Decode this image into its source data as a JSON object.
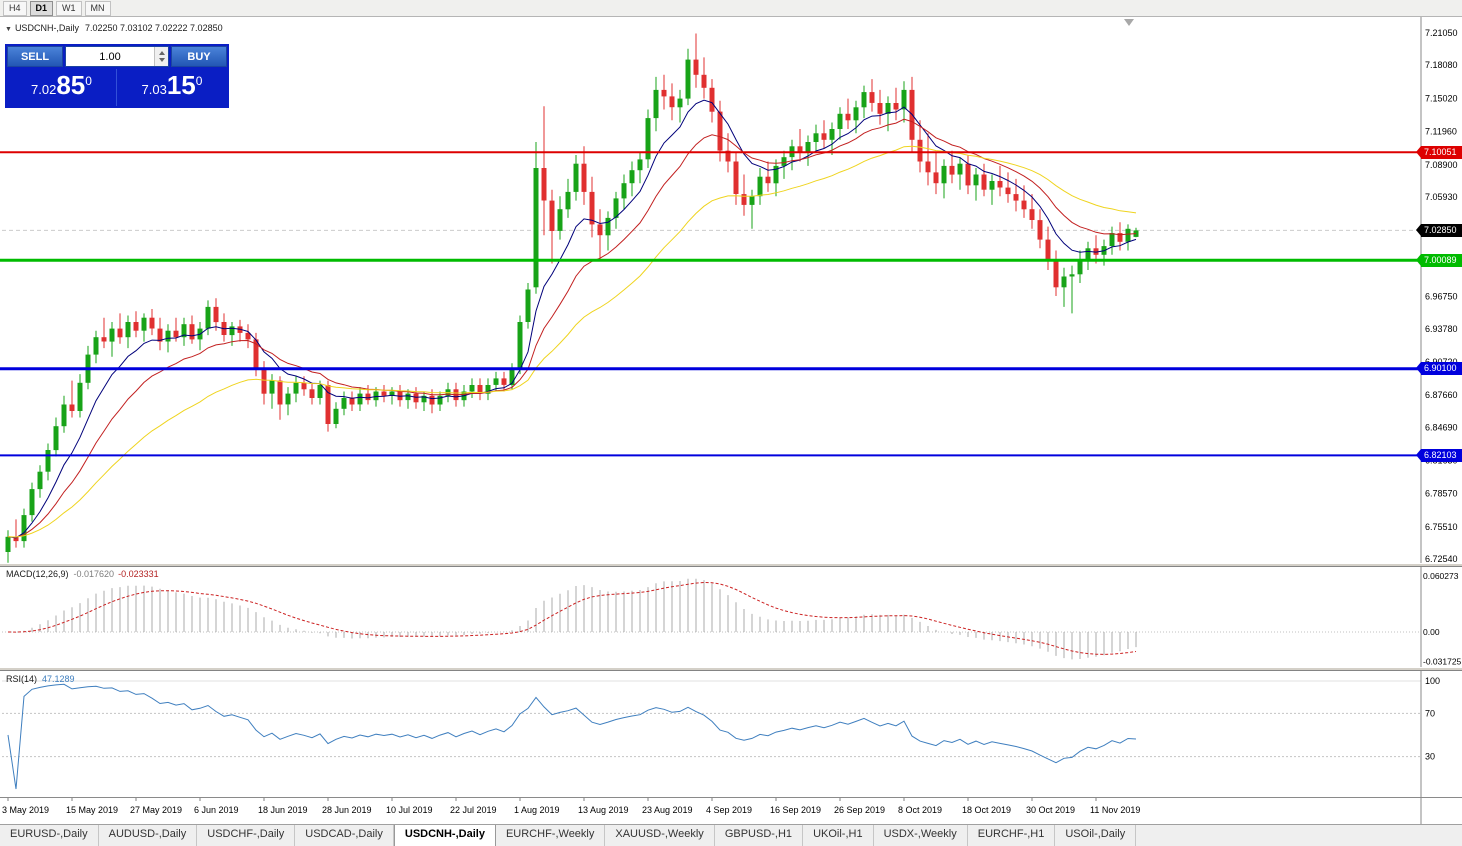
{
  "toolbar": {
    "timeframes": [
      {
        "label": "H4",
        "active": false
      },
      {
        "label": "D1",
        "active": true
      },
      {
        "label": "W1",
        "active": false
      },
      {
        "label": "MN",
        "active": false
      }
    ]
  },
  "chart": {
    "title_symbol": "USDCNH-,Daily",
    "title_ohlc": "7.02250 7.03102 7.02222 7.02850",
    "one_click": {
      "sell_label": "SELL",
      "buy_label": "BUY",
      "volume": "1.00",
      "sell_price_small": "7.02",
      "sell_price_big": "85",
      "sell_price_sup": "0",
      "buy_price_small": "7.03",
      "buy_price_big": "15",
      "buy_price_sup": "0"
    }
  },
  "chart_data": {
    "type": "candlestick",
    "symbol": "USDCNH",
    "timeframe": "Daily",
    "colors": {
      "up": "#18a318",
      "down": "#e03030",
      "bg": "#ffffff"
    },
    "price_axis": {
      "min": 6.7254,
      "max": 7.2105,
      "ticks": [
        {
          "v": 7.2105,
          "label": "7.21050"
        },
        {
          "v": 7.1808,
          "label": "7.18080"
        },
        {
          "v": 7.1502,
          "label": "7.15020"
        },
        {
          "v": 7.1196,
          "label": "7.11960"
        },
        {
          "v": 7.089,
          "label": "7.08900"
        },
        {
          "v": 7.0593,
          "label": "7.05930"
        },
        {
          "v": 7.0287,
          "label": "7.02870"
        },
        {
          "v": 6.9981,
          "label": "6.99810"
        },
        {
          "v": 6.9675,
          "label": "6.96750"
        },
        {
          "v": 6.9378,
          "label": "6.93780"
        },
        {
          "v": 6.9072,
          "label": "6.90720"
        },
        {
          "v": 6.8766,
          "label": "6.87660"
        },
        {
          "v": 6.8469,
          "label": "6.84690"
        },
        {
          "v": 6.8163,
          "label": "6.81630"
        },
        {
          "v": 6.7857,
          "label": "6.78570"
        },
        {
          "v": 6.7551,
          "label": "6.75510"
        },
        {
          "v": 6.7254,
          "label": "6.72540"
        }
      ]
    },
    "hlines": [
      {
        "value": 7.10051,
        "label": "7.10051",
        "color": "#dd0000",
        "width": 2
      },
      {
        "value": 7.00089,
        "label": "7.00089",
        "color": "#00bb00",
        "width": 3
      },
      {
        "value": 6.901,
        "label": "6.90100",
        "color": "#0000dd",
        "width": 3
      },
      {
        "value": 6.82103,
        "label": "6.82103",
        "color": "#0000dd",
        "width": 2
      }
    ],
    "current_price": {
      "value": 7.0285,
      "label": "7.02850",
      "color": "#000000"
    },
    "ma": [
      {
        "name": "ma-fast",
        "period": 8,
        "color": "#00007a"
      },
      {
        "name": "ma-mid",
        "period": 16,
        "color": "#c22020"
      },
      {
        "name": "ma-slow",
        "period": 34,
        "color": "#efd41f"
      }
    ],
    "macd": {
      "label": "MACD(12,26,9)",
      "value_main": "-0.017620",
      "value_signal": "-0.023331",
      "params": [
        12,
        26,
        9
      ],
      "hist_color": "#ababab",
      "signal_color": "#cc2222",
      "axis": [
        {
          "v": 0.060273,
          "label": "0.060273"
        },
        {
          "v": 0,
          "label": "0.00"
        },
        {
          "v": -0.031725,
          "label": "-0.031725"
        }
      ]
    },
    "rsi": {
      "label": "RSI(14)",
      "value_text": "47.1289",
      "period": 14,
      "color": "#3f7fbf",
      "levels": [
        {
          "v": 100,
          "label": "100"
        },
        {
          "v": 70,
          "label": "70"
        },
        {
          "v": 30,
          "label": "30"
        }
      ]
    },
    "date_ticks": [
      {
        "index": 0,
        "label": "3 May 2019"
      },
      {
        "index": 8,
        "label": "15 May 2019"
      },
      {
        "index": 16,
        "label": "27 May 2019"
      },
      {
        "index": 24,
        "label": "6 Jun 2019"
      },
      {
        "index": 32,
        "label": "18 Jun 2019"
      },
      {
        "index": 40,
        "label": "28 Jun 2019"
      },
      {
        "index": 48,
        "label": "10 Jul 2019"
      },
      {
        "index": 56,
        "label": "22 Jul 2019"
      },
      {
        "index": 64,
        "label": "1 Aug 2019"
      },
      {
        "index": 72,
        "label": "13 Aug 2019"
      },
      {
        "index": 80,
        "label": "23 Aug 2019"
      },
      {
        "index": 88,
        "label": "4 Sep 2019"
      },
      {
        "index": 96,
        "label": "16 Sep 2019"
      },
      {
        "index": 104,
        "label": "26 Sep 2019"
      },
      {
        "index": 112,
        "label": "8 Oct 2019"
      },
      {
        "index": 120,
        "label": "18 Oct 2019"
      },
      {
        "index": 128,
        "label": "30 Oct 2019"
      },
      {
        "index": 136,
        "label": "11 Nov 2019"
      }
    ],
    "candles": [
      [
        6.732,
        6.752,
        6.722,
        6.746
      ],
      [
        6.746,
        6.762,
        6.736,
        6.742
      ],
      [
        6.742,
        6.772,
        6.736,
        6.766
      ],
      [
        6.766,
        6.796,
        6.76,
        6.79
      ],
      [
        6.79,
        6.812,
        6.782,
        6.806
      ],
      [
        6.806,
        6.832,
        6.798,
        6.826
      ],
      [
        6.826,
        6.856,
        6.82,
        6.848
      ],
      [
        6.848,
        6.876,
        6.842,
        6.868
      ],
      [
        6.868,
        6.89,
        6.856,
        6.862
      ],
      [
        6.862,
        6.896,
        6.856,
        6.888
      ],
      [
        6.888,
        6.922,
        6.882,
        6.914
      ],
      [
        6.914,
        6.936,
        6.906,
        6.93
      ],
      [
        6.93,
        6.948,
        6.92,
        6.926
      ],
      [
        6.926,
        6.944,
        6.912,
        6.938
      ],
      [
        6.938,
        6.952,
        6.924,
        6.93
      ],
      [
        6.93,
        6.95,
        6.92,
        6.944
      ],
      [
        6.944,
        6.954,
        6.93,
        6.936
      ],
      [
        6.936,
        6.952,
        6.926,
        6.948
      ],
      [
        6.948,
        6.956,
        6.932,
        6.938
      ],
      [
        6.938,
        6.948,
        6.918,
        6.926
      ],
      [
        6.926,
        6.942,
        6.916,
        6.936
      ],
      [
        6.936,
        6.948,
        6.926,
        6.93
      ],
      [
        6.93,
        6.948,
        6.922,
        6.942
      ],
      [
        6.942,
        6.95,
        6.924,
        6.928
      ],
      [
        6.928,
        6.944,
        6.918,
        6.938
      ],
      [
        6.938,
        6.964,
        6.932,
        6.958
      ],
      [
        6.958,
        6.966,
        6.936,
        6.944
      ],
      [
        6.944,
        6.952,
        6.926,
        6.932
      ],
      [
        6.932,
        6.944,
        6.922,
        6.94
      ],
      [
        6.94,
        6.946,
        6.926,
        6.934
      ],
      [
        6.934,
        6.942,
        6.92,
        6.928
      ],
      [
        6.928,
        6.934,
        6.894,
        6.9
      ],
      [
        6.9,
        6.908,
        6.868,
        6.878
      ],
      [
        6.878,
        6.896,
        6.864,
        6.89
      ],
      [
        6.89,
        6.894,
        6.854,
        6.868
      ],
      [
        6.868,
        6.884,
        6.858,
        6.878
      ],
      [
        6.878,
        6.894,
        6.87,
        6.888
      ],
      [
        6.888,
        6.894,
        6.876,
        6.882
      ],
      [
        6.882,
        6.888,
        6.868,
        6.874
      ],
      [
        6.874,
        6.89,
        6.868,
        6.886
      ],
      [
        6.886,
        6.89,
        6.843,
        6.85
      ],
      [
        6.85,
        6.87,
        6.846,
        6.864
      ],
      [
        6.864,
        6.88,
        6.858,
        6.874
      ],
      [
        6.874,
        6.88,
        6.862,
        6.868
      ],
      [
        6.868,
        6.884,
        6.862,
        6.878
      ],
      [
        6.878,
        6.886,
        6.868,
        6.872
      ],
      [
        6.872,
        6.884,
        6.866,
        6.88
      ],
      [
        6.88,
        6.886,
        6.87,
        6.876
      ],
      [
        6.876,
        6.884,
        6.868,
        6.88
      ],
      [
        6.88,
        6.886,
        6.866,
        6.872
      ],
      [
        6.872,
        6.882,
        6.864,
        6.878
      ],
      [
        6.878,
        6.884,
        6.864,
        6.87
      ],
      [
        6.87,
        6.88,
        6.862,
        6.876
      ],
      [
        6.876,
        6.882,
        6.86,
        6.868
      ],
      [
        6.868,
        6.88,
        6.862,
        6.876
      ],
      [
        6.876,
        6.888,
        6.87,
        6.882
      ],
      [
        6.882,
        6.888,
        6.866,
        6.872
      ],
      [
        6.872,
        6.886,
        6.866,
        6.88
      ],
      [
        6.88,
        6.892,
        6.874,
        6.886
      ],
      [
        6.886,
        6.892,
        6.872,
        6.878
      ],
      [
        6.878,
        6.892,
        6.872,
        6.886
      ],
      [
        6.886,
        6.898,
        6.88,
        6.892
      ],
      [
        6.892,
        6.898,
        6.88,
        6.886
      ],
      [
        6.886,
        6.906,
        6.882,
        6.902
      ],
      [
        6.902,
        6.95,
        6.896,
        6.944
      ],
      [
        6.944,
        6.98,
        6.938,
        6.974
      ],
      [
        6.976,
        7.11,
        6.97,
        7.086
      ],
      [
        7.086,
        7.143,
        7.024,
        7.056
      ],
      [
        7.056,
        7.066,
        6.998,
        7.028
      ],
      [
        7.028,
        7.06,
        7.02,
        7.048
      ],
      [
        7.048,
        7.076,
        7.04,
        7.064
      ],
      [
        7.064,
        7.098,
        7.056,
        7.09
      ],
      [
        7.09,
        7.106,
        7.052,
        7.064
      ],
      [
        7.064,
        7.078,
        7.022,
        7.034
      ],
      [
        7.034,
        7.048,
        7.002,
        7.024
      ],
      [
        7.024,
        7.046,
        7.01,
        7.04
      ],
      [
        7.04,
        7.064,
        7.03,
        7.058
      ],
      [
        7.058,
        7.08,
        7.048,
        7.072
      ],
      [
        7.072,
        7.092,
        7.06,
        7.084
      ],
      [
        7.084,
        7.1,
        7.072,
        7.094
      ],
      [
        7.094,
        7.14,
        7.086,
        7.132
      ],
      [
        7.132,
        7.17,
        7.12,
        7.158
      ],
      [
        7.158,
        7.172,
        7.14,
        7.152
      ],
      [
        7.152,
        7.164,
        7.13,
        7.142
      ],
      [
        7.142,
        7.158,
        7.128,
        7.15
      ],
      [
        7.15,
        7.196,
        7.144,
        7.186
      ],
      [
        7.186,
        7.21,
        7.16,
        7.172
      ],
      [
        7.172,
        7.188,
        7.15,
        7.16
      ],
      [
        7.16,
        7.168,
        7.128,
        7.138
      ],
      [
        7.138,
        7.148,
        7.092,
        7.102
      ],
      [
        7.102,
        7.118,
        7.082,
        7.092
      ],
      [
        7.092,
        7.1,
        7.052,
        7.062
      ],
      [
        7.062,
        7.08,
        7.042,
        7.052
      ],
      [
        7.052,
        7.066,
        7.03,
        7.06
      ],
      [
        7.06,
        7.086,
        7.052,
        7.078
      ],
      [
        7.078,
        7.092,
        7.064,
        7.072
      ],
      [
        7.072,
        7.094,
        7.06,
        7.088
      ],
      [
        7.088,
        7.102,
        7.076,
        7.096
      ],
      [
        7.096,
        7.112,
        7.084,
        7.106
      ],
      [
        7.106,
        7.122,
        7.092,
        7.1
      ],
      [
        7.1,
        7.116,
        7.088,
        7.11
      ],
      [
        7.11,
        7.126,
        7.1,
        7.118
      ],
      [
        7.118,
        7.13,
        7.104,
        7.112
      ],
      [
        7.112,
        7.128,
        7.098,
        7.122
      ],
      [
        7.122,
        7.142,
        7.112,
        7.136
      ],
      [
        7.136,
        7.15,
        7.122,
        7.13
      ],
      [
        7.13,
        7.148,
        7.118,
        7.142
      ],
      [
        7.142,
        7.162,
        7.132,
        7.156
      ],
      [
        7.156,
        7.168,
        7.138,
        7.146
      ],
      [
        7.146,
        7.158,
        7.126,
        7.136
      ],
      [
        7.136,
        7.152,
        7.12,
        7.146
      ],
      [
        7.146,
        7.16,
        7.13,
        7.14
      ],
      [
        7.14,
        7.166,
        7.128,
        7.158
      ],
      [
        7.158,
        7.17,
        7.1,
        7.112
      ],
      [
        7.112,
        7.13,
        7.082,
        7.092
      ],
      [
        7.092,
        7.118,
        7.07,
        7.082
      ],
      [
        7.082,
        7.1,
        7.062,
        7.072
      ],
      [
        7.072,
        7.094,
        7.058,
        7.088
      ],
      [
        7.088,
        7.102,
        7.072,
        7.08
      ],
      [
        7.08,
        7.096,
        7.066,
        7.09
      ],
      [
        7.09,
        7.098,
        7.062,
        7.07
      ],
      [
        7.07,
        7.086,
        7.056,
        7.08
      ],
      [
        7.08,
        7.09,
        7.06,
        7.066
      ],
      [
        7.066,
        7.08,
        7.052,
        7.074
      ],
      [
        7.074,
        7.088,
        7.06,
        7.068
      ],
      [
        7.068,
        7.082,
        7.054,
        7.062
      ],
      [
        7.062,
        7.076,
        7.046,
        7.056
      ],
      [
        7.056,
        7.07,
        7.04,
        7.048
      ],
      [
        7.048,
        7.062,
        7.03,
        7.038
      ],
      [
        7.038,
        7.048,
        7.012,
        7.02
      ],
      [
        7.02,
        7.032,
        6.992,
        7.0
      ],
      [
        7.0,
        7.01,
        6.968,
        6.976
      ],
      [
        6.976,
        6.994,
        6.958,
        6.986
      ],
      [
        6.986,
        6.996,
        6.952,
        6.988
      ],
      [
        6.988,
        7.01,
        6.98,
        7.002
      ],
      [
        7.002,
        7.018,
        6.992,
        7.012
      ],
      [
        7.012,
        7.024,
        6.998,
        7.006
      ],
      [
        7.006,
        7.02,
        6.996,
        7.014
      ],
      [
        7.014,
        7.032,
        7.006,
        7.026
      ],
      [
        7.026,
        7.036,
        7.01,
        7.018
      ],
      [
        7.018,
        7.034,
        7.01,
        7.03
      ],
      [
        7.0225,
        7.031,
        7.0222,
        7.0285
      ]
    ]
  },
  "tabs": {
    "active_index": 4,
    "items": [
      "EURUSD-,Daily",
      "AUDUSD-,Daily",
      "USDCHF-,Daily",
      "USDCAD-,Daily",
      "USDCNH-,Daily",
      "EURCHF-,Weekly",
      "XAUUSD-,Weekly",
      "GBPUSD-,H1",
      "UKOil-,H1",
      "USDX-,Weekly",
      "EURCHF-,H1",
      "USOil-,Daily"
    ]
  }
}
